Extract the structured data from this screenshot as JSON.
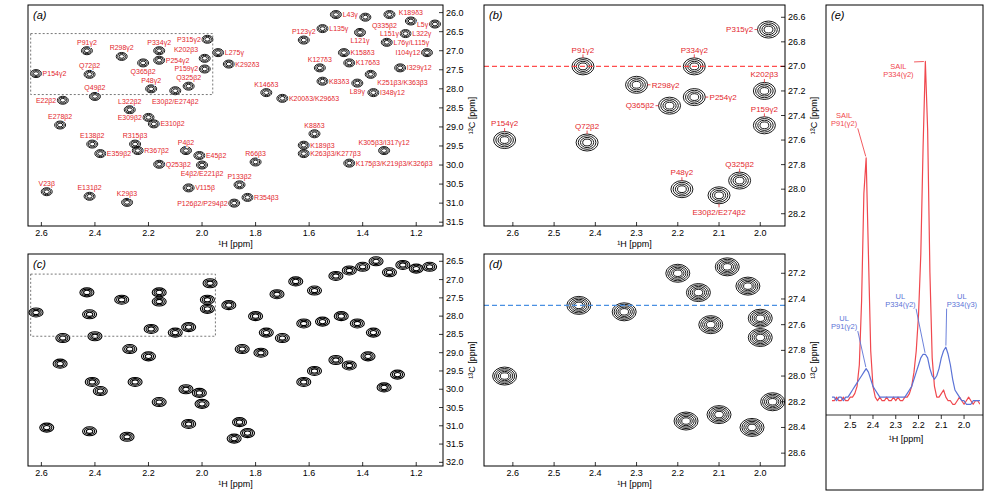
{
  "chart_data": [
    {
      "type": "contour",
      "panel": "(a)",
      "xlabel": "¹H [ppm]",
      "ylabel": "¹³C [ppm]",
      "xlim": [
        2.65,
        1.1
      ],
      "ylim": [
        31.6,
        25.8
      ],
      "xticks": [
        2.6,
        2.4,
        2.2,
        {
          "value": 2,
          "label": "2.0"
        },
        1.8,
        1.6,
        1.4,
        1.2
      ],
      "yticks": [
        {
          "value": 26,
          "label": "26.0"
        },
        26.5,
        {
          "value": 27,
          "label": "27.0"
        },
        27.5,
        {
          "value": 28,
          "label": "28.0"
        },
        28.5,
        {
          "value": 29,
          "label": "29.0"
        },
        29.5,
        {
          "value": 30,
          "label": "30.0"
        },
        30.5,
        {
          "value": 31,
          "label": "31.0"
        },
        31.5
      ],
      "zoom_box": {
        "x": [
          2.64,
          1.96
        ],
        "y": [
          26.55,
          28.15
        ]
      },
      "color": "#000000",
      "x": [
        1.5,
        1.39,
        1.3,
        1.22,
        1.13,
        1.55,
        1.41,
        1.24,
        2.43,
        2.16,
        1.98,
        1.62,
        1.31,
        1.16,
        2.3,
        2.16,
        2.22,
        1.99,
        1.99,
        2.62,
        2.42,
        2.19,
        2.05,
        2.1,
        1.47,
        1.45,
        1.56,
        1.55,
        1.37,
        1.42,
        1.36,
        1.26,
        1.76,
        1.7,
        2.52,
        2.4,
        2.53,
        2.2,
        2.27,
        2.18,
        2.41,
        2.25,
        2.38,
        2.24,
        2.06,
        2.01,
        2.16,
        2.0,
        1.58,
        1.62,
        1.62,
        1.45,
        1.32,
        1.8,
        2.58,
        2.42,
        2.28,
        2.05,
        1.86,
        1.83,
        1.88,
        1.94,
        1.9
      ],
      "values": [
        26.05,
        26.12,
        26.05,
        26.22,
        26.3,
        26.42,
        26.52,
        26.55,
        27.0,
        27.0,
        26.7,
        26.72,
        26.78,
        27.05,
        27.15,
        27.25,
        27.32,
        27.2,
        27.48,
        27.6,
        27.62,
        28.0,
        27.93,
        28.05,
        27.05,
        27.32,
        27.45,
        27.8,
        27.62,
        27.85,
        28.1,
        27.45,
        28.1,
        28.25,
        28.3,
        28.2,
        28.95,
        28.75,
        28.55,
        28.92,
        29.45,
        29.45,
        29.7,
        29.62,
        29.62,
        29.75,
        29.98,
        30.0,
        29.18,
        29.48,
        29.7,
        29.95,
        29.62,
        29.92,
        30.7,
        30.82,
        30.98,
        30.6,
        30.52,
        30.85,
        31.0,
        27.05,
        27.35
      ],
      "point_labels": [
        "L43γ",
        "Q335β2",
        "L151γ",
        "K189δ3",
        "L5γ",
        "L135γ",
        "L121γ",
        "L322γ",
        "P91γ2",
        "P334γ2",
        "P315γ2",
        "P123γ2",
        "L76γ/L115γ",
        "I104γ12",
        "R298γ2",
        "P254γ2",
        "Q365β2",
        "K202β3",
        "P159γ2",
        "P154γ2",
        "Q72β2",
        "P48γ2",
        "Q325β2",
        "E30β2/E274β2",
        "K158δ3",
        "K176δ3",
        "K127δ3",
        "K83δ3",
        "K251β3/K363β3",
        "L89γ",
        "I348γ12",
        "I329γ12",
        "K146δ3",
        "K200δ3/K296δ3",
        "E22β2",
        "Q49β2",
        "E278β2",
        "E309β2",
        "L322β2",
        "E310β2",
        "E138β2",
        "R315β3",
        "E359β2",
        "R367β2",
        "P4β2",
        "E45β2",
        "Q253β2",
        "E4β2/E221β2",
        "K88δ3",
        "K189β3",
        "K263β3/K277β3",
        "K175β3/K219β3/K326β3",
        "K305β3/I317γ12",
        "R66β3",
        "V23β",
        "E131β2",
        "K29β3",
        "V115β",
        "P133β2",
        "R354β3",
        "P126β2/P294β2",
        "L275γ",
        "K292δ3"
      ]
    },
    {
      "type": "contour",
      "panel": "(b)",
      "xlabel": "¹H [ppm]",
      "ylabel": "¹³C [ppm]",
      "xlim": [
        2.67,
        1.94
      ],
      "ylim": [
        28.3,
        26.5
      ],
      "xticks": [
        2.6,
        2.5,
        2.4,
        2.3,
        2.2,
        2.1,
        {
          "value": 2,
          "label": "2.0"
        }
      ],
      "yticks": [
        26.6,
        26.8,
        {
          "value": 27,
          "label": "27.0"
        },
        27.2,
        27.4,
        27.6,
        27.8,
        {
          "value": 28,
          "label": "28.0"
        },
        28.2
      ],
      "hline": {
        "value": 27.0,
        "color": "#ff4d4d"
      },
      "color": "#000000",
      "x": [
        2.43,
        2.16,
        1.98,
        2.3,
        2.16,
        2.22,
        1.99,
        1.99,
        2.62,
        2.42,
        2.19,
        2.05,
        2.1
      ],
      "values": [
        27.0,
        27.0,
        26.7,
        27.15,
        27.25,
        27.32,
        27.2,
        27.48,
        27.6,
        27.62,
        28.0,
        27.93,
        28.05
      ],
      "point_labels": [
        "P91γ2",
        "P334γ2",
        "P315γ2",
        "R298γ2",
        "P254γ2",
        "Q365β2",
        "K202β3",
        "P159γ2",
        "P154γ2",
        "Q72β2",
        "P48γ2",
        "Q325β2",
        "E30β2/E274β2"
      ]
    },
    {
      "type": "contour",
      "panel": "(c)",
      "xlabel": "¹H [ppm]",
      "ylabel": "¹³C [ppm]",
      "xlim": [
        2.65,
        1.1
      ],
      "ylim": [
        32.1,
        26.3
      ],
      "xticks": [
        2.6,
        2.4,
        2.2,
        {
          "value": 2,
          "label": "2.0"
        },
        1.8,
        1.6,
        1.4,
        1.2
      ],
      "yticks": [
        26.5,
        {
          "value": 27,
          "label": "27.0"
        },
        27.5,
        {
          "value": 28,
          "label": "28.0"
        },
        28.5,
        {
          "value": 29,
          "label": "29.0"
        },
        29.5,
        {
          "value": 30,
          "label": "30.0"
        },
        30.5,
        {
          "value": 31,
          "label": "31.0"
        },
        31.5,
        {
          "value": 32,
          "label": "32.0"
        }
      ],
      "zoom_box": {
        "x": [
          2.64,
          1.95
        ],
        "y": [
          26.85,
          28.55
        ]
      },
      "color": "#000000",
      "x": [
        2.62,
        2.43,
        2.16,
        2.3,
        2.16,
        1.98,
        1.98,
        2.42,
        2.19,
        2.05,
        2.1,
        1.97,
        2.52,
        2.4,
        2.53,
        2.2,
        2.27,
        2.41,
        2.25,
        2.38,
        2.06,
        2.01,
        2.16,
        2.0,
        2.58,
        2.42,
        2.28,
        2.05,
        1.86,
        1.83,
        1.88,
        1.8,
        1.72,
        1.65,
        1.58,
        1.5,
        1.45,
        1.4,
        1.35,
        1.3,
        1.25,
        1.2,
        1.15,
        1.76,
        1.7,
        1.62,
        1.55,
        1.48,
        1.42,
        1.36,
        1.62,
        1.58,
        1.5,
        1.45,
        1.38,
        1.32,
        1.27,
        1.9,
        1.85,
        1.78
      ],
      "values": [
        27.9,
        27.35,
        27.35,
        27.55,
        27.6,
        27.55,
        27.8,
        27.95,
        28.35,
        28.3,
        28.45,
        27.1,
        28.6,
        28.55,
        29.3,
        29.1,
        28.9,
        29.8,
        29.8,
        30.05,
        30.0,
        30.1,
        30.35,
        30.4,
        31.05,
        31.15,
        31.3,
        30.95,
        30.9,
        31.2,
        31.35,
        28.0,
        27.4,
        27.05,
        27.3,
        26.9,
        26.75,
        26.65,
        26.5,
        26.8,
        26.6,
        26.7,
        26.65,
        28.45,
        28.6,
        28.2,
        28.15,
        28.0,
        28.2,
        28.45,
        29.8,
        29.5,
        29.2,
        29.35,
        29.1,
        29.95,
        29.6,
        27.7,
        28.9,
        29.0
      ]
    },
    {
      "type": "contour",
      "panel": "(d)",
      "xlabel": "¹H [ppm]",
      "ylabel": "¹³C [ppm]",
      "xlim": [
        2.67,
        1.94
      ],
      "ylim": [
        28.7,
        27.05
      ],
      "xticks": [
        2.6,
        2.5,
        2.4,
        2.3,
        2.2,
        2.1,
        {
          "value": 2,
          "label": "2.0"
        }
      ],
      "yticks": [
        27.2,
        27.4,
        27.6,
        27.8,
        {
          "value": 28,
          "label": "28.0"
        },
        28.2,
        28.4,
        28.6
      ],
      "hline": {
        "value": 27.45,
        "color": "#4a90e2"
      },
      "color": "#000000",
      "x": [
        2.62,
        2.44,
        2.33,
        2.2,
        2.15,
        2.08,
        2.03,
        2.0,
        2.12,
        2.0,
        2.18,
        2.1,
        2.02,
        1.97
      ],
      "values": [
        28.0,
        27.45,
        27.5,
        27.2,
        27.35,
        27.15,
        27.3,
        27.55,
        27.6,
        27.7,
        28.35,
        28.3,
        28.4,
        28.2
      ]
    },
    {
      "type": "line",
      "panel": "(e)",
      "xlabel": "¹H [ppm]",
      "xlim": [
        2.58,
        1.93
      ],
      "ylim": [
        0,
        1.05
      ],
      "xticks": [
        2.5,
        2.4,
        2.3,
        2.2,
        2.1,
        {
          "value": 2,
          "label": "2.0"
        }
      ],
      "tick_labels": "x",
      "x": [
        2.58,
        2.57,
        2.56,
        2.55,
        2.54,
        2.53,
        2.52,
        2.51,
        2.5,
        2.49,
        2.48,
        2.47,
        2.46,
        2.45,
        2.44,
        2.43,
        2.42,
        2.41,
        2.4,
        2.39,
        2.38,
        2.37,
        2.36,
        2.35,
        2.34,
        2.33,
        2.32,
        2.31,
        2.3,
        2.29,
        2.28,
        2.27,
        2.26,
        2.25,
        2.24,
        2.23,
        2.22,
        2.21,
        2.2,
        2.19,
        2.18,
        2.17,
        2.16,
        2.15,
        2.14,
        2.13,
        2.12,
        2.11,
        2.1,
        2.09,
        2.08,
        2.07,
        2.06,
        2.05,
        2.04,
        2.03,
        2.02,
        2.01,
        2,
        1.99,
        1.98,
        1.97,
        1.96,
        1.95,
        1.94,
        1.93
      ],
      "series": [
        {
          "color": "#f0484e",
          "values": [
            0.04,
            0.04,
            0.05,
            0.04,
            0.04,
            0.05,
            0.04,
            0.04,
            0.05,
            0.05,
            0.06,
            0.08,
            0.14,
            0.32,
            0.62,
            0.72,
            0.45,
            0.18,
            0.08,
            0.05,
            0.04,
            0.05,
            0.04,
            0.04,
            0.05,
            0.04,
            0.04,
            0.05,
            0.04,
            0.05,
            0.04,
            0.04,
            0.05,
            0.05,
            0.06,
            0.08,
            0.12,
            0.18,
            0.28,
            0.45,
            0.75,
            0.99,
            0.8,
            0.4,
            0.16,
            0.08,
            0.05,
            0.05,
            0.06,
            0.07,
            0.05,
            0.04,
            0.04,
            0.03,
            0.03,
            0.04,
            0.05,
            0.04,
            0.03,
            0.04,
            0.05,
            0.04,
            0.03,
            0.04,
            0.04,
            0.03
          ],
          "annotations": [
            {
              "text": "SAIL P91(γ2)",
              "x": 2.43,
              "y": 0.72
            },
            {
              "text": "SAIL P334(γ2)",
              "x": 2.17,
              "y": 0.99
            }
          ]
        },
        {
          "color": "#5b73d6",
          "values": [
            0.05,
            0.05,
            0.04,
            0.05,
            0.05,
            0.04,
            0.05,
            0.05,
            0.06,
            0.07,
            0.08,
            0.09,
            0.1,
            0.11,
            0.12,
            0.13,
            0.12,
            0.1,
            0.08,
            0.07,
            0.06,
            0.05,
            0.05,
            0.05,
            0.05,
            0.05,
            0.05,
            0.05,
            0.05,
            0.05,
            0.05,
            0.05,
            0.05,
            0.06,
            0.07,
            0.08,
            0.1,
            0.12,
            0.14,
            0.16,
            0.17,
            0.17,
            0.16,
            0.13,
            0.11,
            0.1,
            0.11,
            0.13,
            0.16,
            0.18,
            0.19,
            0.17,
            0.14,
            0.1,
            0.07,
            0.06,
            0.05,
            0.04,
            0.04,
            0.03,
            0.03,
            0.03,
            0.04,
            0.04,
            0.04,
            0.04
          ],
          "annotations": [
            {
              "text": "UL P91(γ2)",
              "x": 2.43,
              "y": 0.13
            },
            {
              "text": "UL P334(γ2)",
              "x": 2.17,
              "y": 0.17
            },
            {
              "text": "UL P334(γ3)",
              "x": 2.08,
              "y": 0.19
            }
          ]
        }
      ]
    }
  ]
}
